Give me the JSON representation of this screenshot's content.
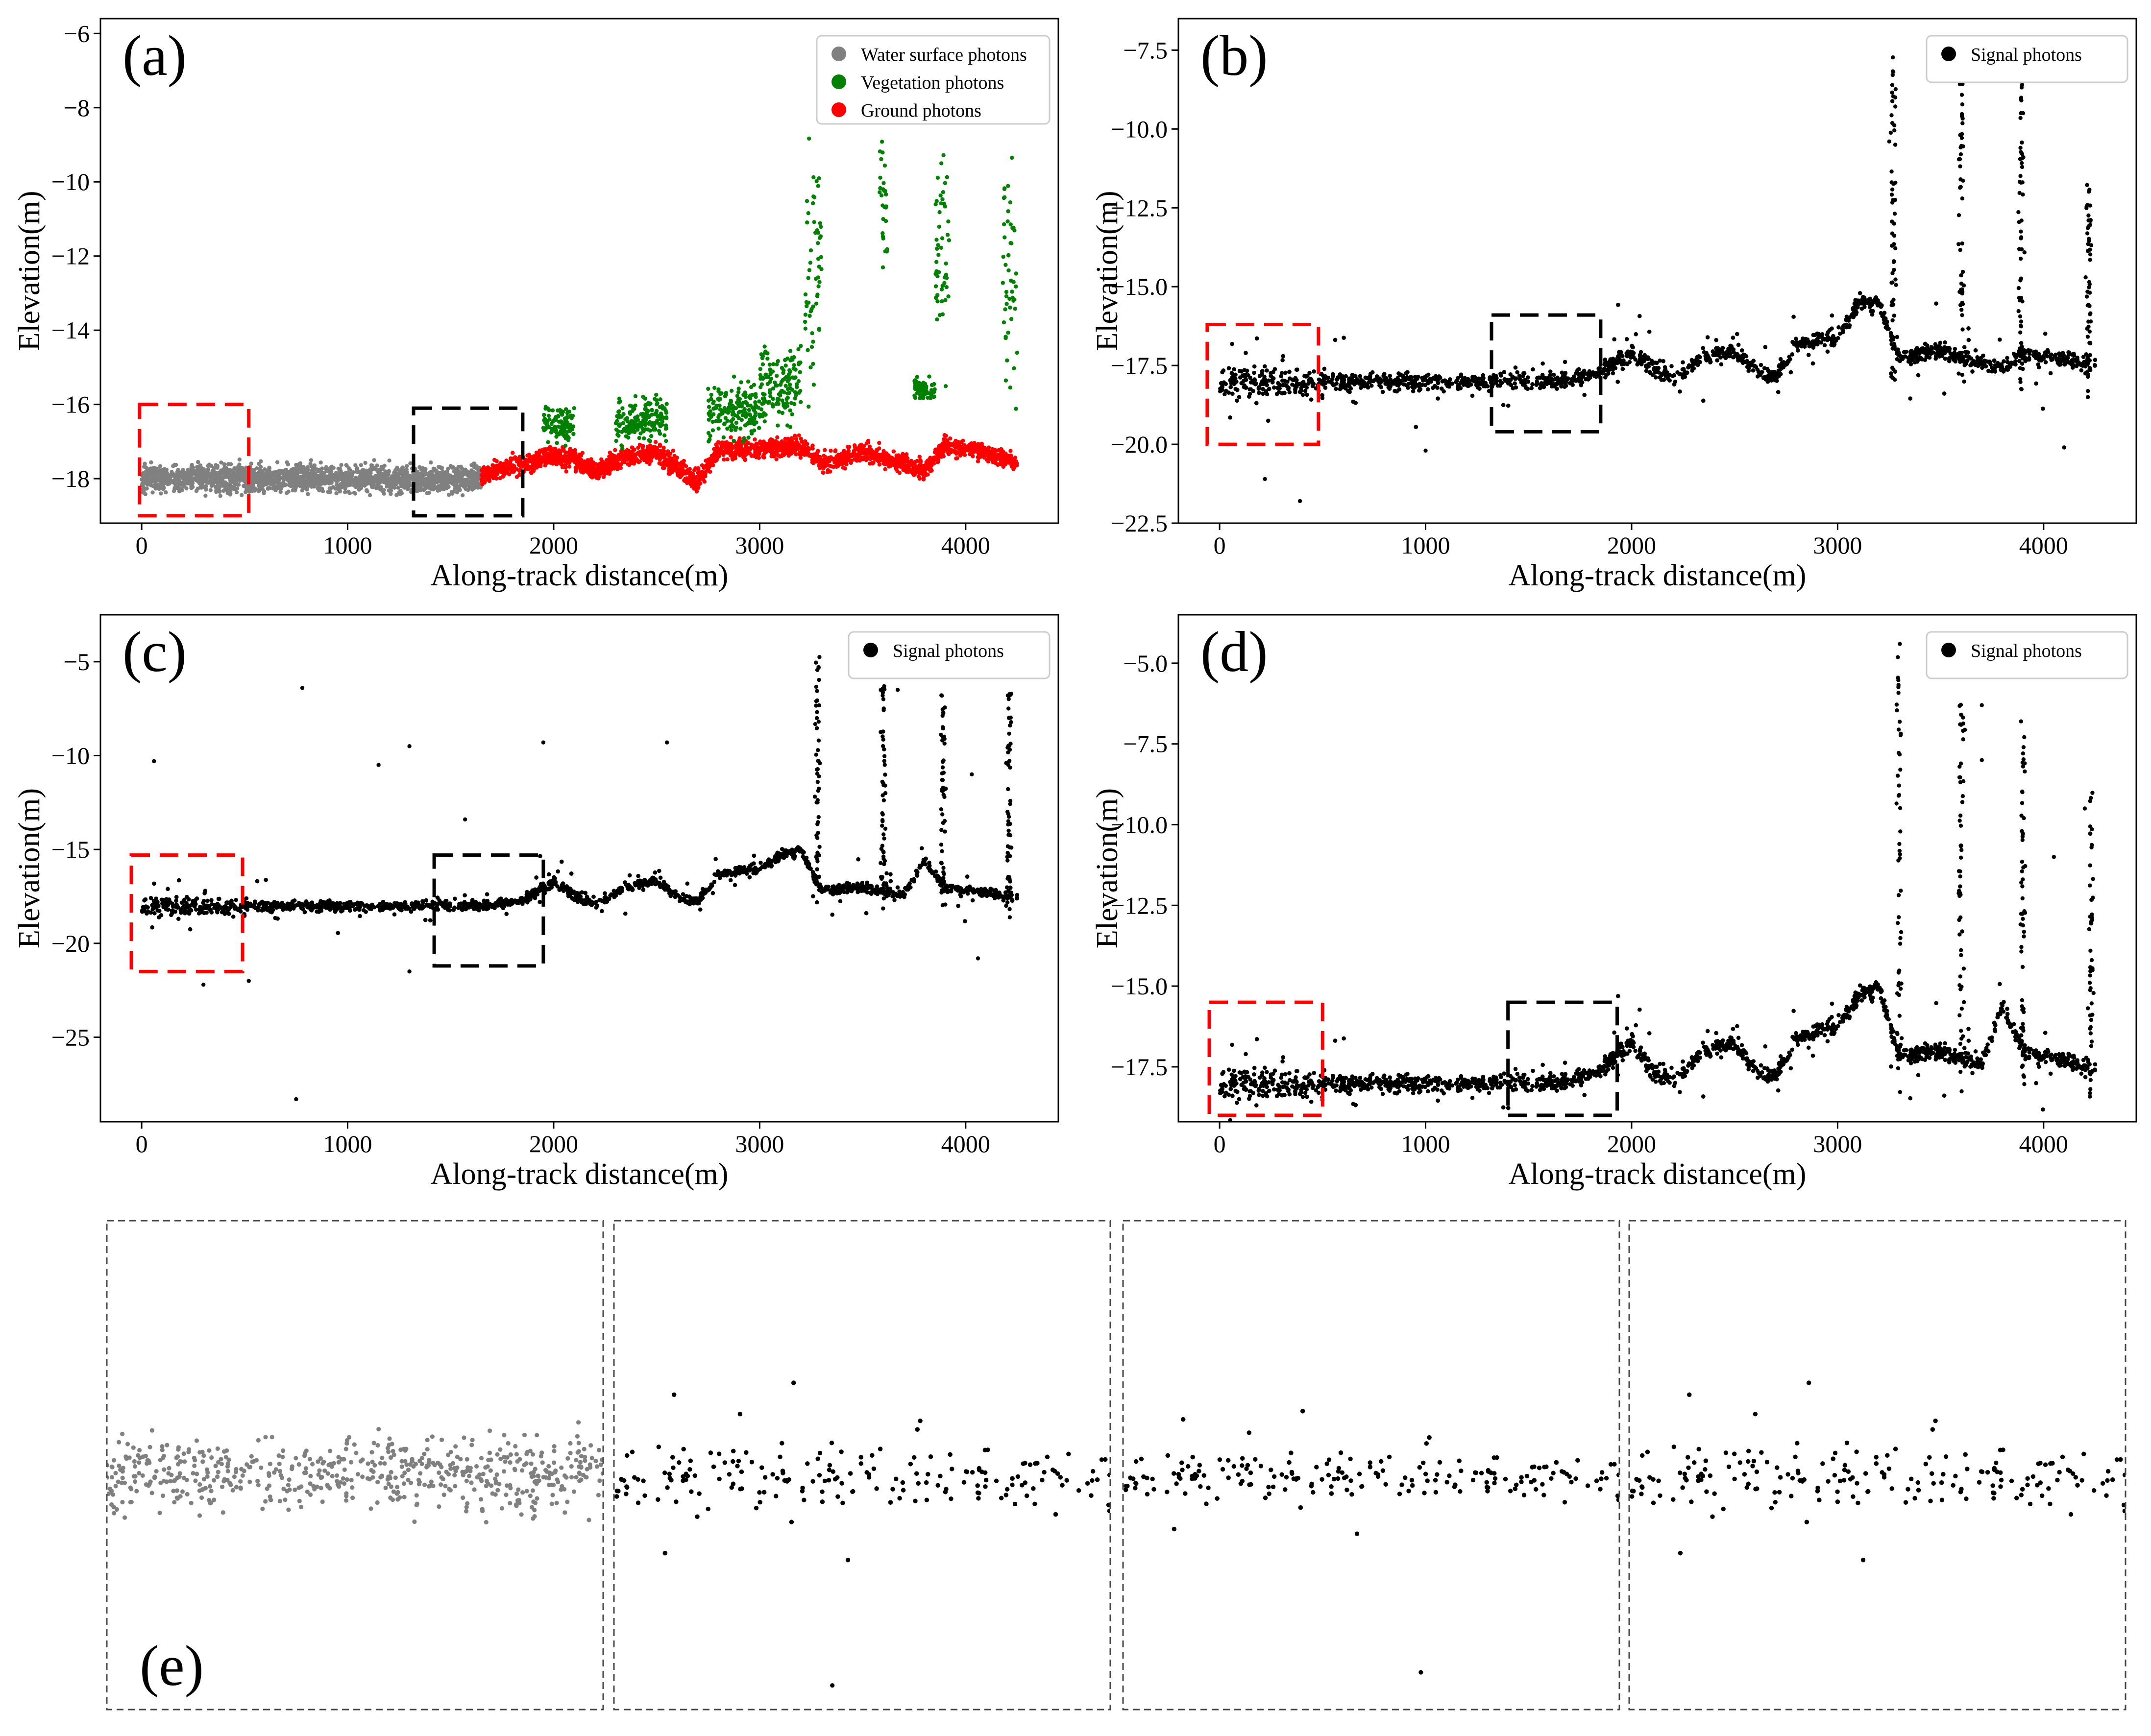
{
  "colors": {
    "water": "#808080",
    "vegetation": "#008000",
    "ground": "#ff0000",
    "signal": "#000000",
    "red_box": "#ff0000",
    "black_box": "#000000"
  },
  "x_axis_label": "Along-track distance(m)",
  "y_axis_label": "Elevation(m)",
  "chart_data": [
    {
      "id": "a",
      "panel_label": "(a)",
      "type": "scatter",
      "xlabel": "Along-track distance(m)",
      "ylabel": "Elevation(m)",
      "xlim": [
        -200,
        4450
      ],
      "ylim": [
        -19.2,
        -5.6
      ],
      "xticks": [
        0,
        1000,
        2000,
        3000,
        4000
      ],
      "yticks": [
        -18,
        -16,
        -14,
        -12,
        -10,
        -8,
        -6
      ],
      "grid": false,
      "legend_position": "top-right",
      "legend": [
        "Water surface photons",
        "Vegetation photons",
        "Ground photons"
      ],
      "series": [
        {
          "name": "Water surface photons",
          "color": "#808080",
          "segments": [
            {
              "x": [
                0,
                1650
              ],
              "elevation": -18.0,
              "spread": 0.35
            }
          ]
        },
        {
          "name": "Ground photons",
          "color": "#ff0000",
          "profile": [
            [
              1650,
              -17.9
            ],
            [
              1850,
              -17.6
            ],
            [
              2000,
              -17.4
            ],
            [
              2100,
              -17.5
            ],
            [
              2200,
              -17.8
            ],
            [
              2350,
              -17.4
            ],
            [
              2500,
              -17.3
            ],
            [
              2600,
              -17.7
            ],
            [
              2700,
              -18.1
            ],
            [
              2800,
              -17.2
            ],
            [
              3000,
              -17.2
            ],
            [
              3200,
              -17.1
            ],
            [
              3300,
              -17.6
            ],
            [
              3500,
              -17.3
            ],
            [
              3700,
              -17.6
            ],
            [
              3800,
              -17.8
            ],
            [
              3900,
              -17.1
            ],
            [
              4100,
              -17.3
            ],
            [
              4250,
              -17.6
            ]
          ]
        },
        {
          "name": "Vegetation photons",
          "color": "#008000",
          "segments": [
            {
              "x": [
                1950,
                2100
              ],
              "elevation": -16.5,
              "spread": 0.5
            },
            {
              "x": [
                2300,
                2550
              ],
              "elevation": -16.4,
              "spread": 0.6
            },
            {
              "x": [
                2750,
                3000
              ],
              "elevation": -16.2,
              "spread": 0.7
            },
            {
              "x": [
                3000,
                3200
              ],
              "elevation": -15.5,
              "spread": 1.0
            },
            {
              "x": [
                3220,
                3300
              ],
              "elevation": -12.0,
              "spread": 3.2
            },
            {
              "x": [
                3580,
                3620
              ],
              "elevation": -10.5,
              "spread": 2.5
            },
            {
              "x": [
                3750,
                3850
              ],
              "elevation": -15.6,
              "spread": 0.3
            },
            {
              "x": [
                3850,
                3920
              ],
              "elevation": -12.0,
              "spread": 3.0
            },
            {
              "x": [
                4180,
                4250
              ],
              "elevation": -12.5,
              "spread": 3.0
            }
          ]
        }
      ]
    },
    {
      "id": "b",
      "panel_label": "(b)",
      "type": "scatter",
      "xlabel": "Along-track distance(m)",
      "ylabel": "Elevation(m)",
      "xlim": [
        -200,
        4450
      ],
      "ylim": [
        -22.5,
        -6.5
      ],
      "xticks": [
        0,
        1000,
        2000,
        3000,
        4000
      ],
      "yticks": [
        -22.5,
        -20.0,
        -17.5,
        -15.0,
        -12.5,
        -10.0,
        -7.5
      ],
      "grid": false,
      "legend_position": "top-right",
      "legend": [
        "Signal photons"
      ],
      "series": [
        {
          "name": "Signal photons",
          "color": "#000000",
          "profile": [
            [
              0,
              -18.0
            ],
            [
              1650,
              -18.0
            ],
            [
              1850,
              -17.7
            ],
            [
              2000,
              -17.1
            ],
            [
              2100,
              -17.5
            ],
            [
              2200,
              -18.0
            ],
            [
              2350,
              -17.2
            ],
            [
              2500,
              -17.0
            ],
            [
              2600,
              -17.6
            ],
            [
              2700,
              -17.9
            ],
            [
              2800,
              -16.8
            ],
            [
              3000,
              -16.6
            ],
            [
              3100,
              -15.5
            ],
            [
              3200,
              -15.5
            ],
            [
              3300,
              -17.3
            ],
            [
              3500,
              -17.0
            ],
            [
              3700,
              -17.4
            ],
            [
              3800,
              -17.6
            ],
            [
              3900,
              -17.1
            ],
            [
              4100,
              -17.3
            ],
            [
              4250,
              -17.5
            ]
          ],
          "spikes": [
            [
              3270,
              -7.4
            ],
            [
              3600,
              -8.1
            ],
            [
              3890,
              -7.8
            ],
            [
              4220,
              -11.6
            ]
          ],
          "outliers": [
            [
              220,
              -21.1
            ],
            [
              390,
              -21.8
            ],
            [
              1000,
              -20.2
            ],
            [
              3280,
              -9.0
            ],
            [
              3280,
              -10.5
            ],
            [
              3890,
              -9.5
            ],
            [
              3890,
              -11.7
            ],
            [
              4100,
              -20.1
            ]
          ]
        }
      ]
    },
    {
      "id": "c",
      "panel_label": "(c)",
      "type": "scatter",
      "xlabel": "Along-track distance(m)",
      "ylabel": "Elevation(m)",
      "xlim": [
        -200,
        4450
      ],
      "ylim": [
        -29.5,
        -2.5
      ],
      "xticks": [
        0,
        1000,
        2000,
        3000,
        4000
      ],
      "yticks": [
        -25,
        -20,
        -15,
        -10,
        -5
      ],
      "grid": false,
      "legend_position": "top-right",
      "legend": [
        "Signal photons"
      ],
      "series": [
        {
          "name": "Signal photons",
          "color": "#000000",
          "profile": [
            [
              0,
              -18.0
            ],
            [
              1650,
              -18.0
            ],
            [
              1850,
              -17.7
            ],
            [
              2000,
              -16.7
            ],
            [
              2100,
              -17.4
            ],
            [
              2200,
              -18.0
            ],
            [
              2350,
              -17.0
            ],
            [
              2500,
              -16.6
            ],
            [
              2600,
              -17.5
            ],
            [
              2700,
              -17.8
            ],
            [
              2800,
              -16.3
            ],
            [
              3000,
              -16.0
            ],
            [
              3100,
              -15.3
            ],
            [
              3200,
              -15.0
            ],
            [
              3300,
              -17.2
            ],
            [
              3500,
              -17.0
            ],
            [
              3700,
              -17.4
            ],
            [
              3800,
              -15.6
            ],
            [
              3900,
              -17.0
            ],
            [
              4100,
              -17.3
            ],
            [
              4250,
              -17.6
            ]
          ],
          "spikes": [
            [
              3280,
              -4.5
            ],
            [
              3600,
              -6.3
            ],
            [
              3890,
              -6.7
            ],
            [
              4210,
              -6.5
            ]
          ],
          "outliers": [
            [
              60,
              -10.3
            ],
            [
              780,
              -6.4
            ],
            [
              1150,
              -10.5
            ],
            [
              1300,
              -9.5
            ],
            [
              1570,
              -13.4
            ],
            [
              1950,
              -9.3
            ],
            [
              2550,
              -9.3
            ],
            [
              750,
              -28.3
            ],
            [
              300,
              -22.2
            ],
            [
              520,
              -22.0
            ],
            [
              1300,
              -21.5
            ],
            [
              3670,
              -6.5
            ],
            [
              4030,
              -11.0
            ],
            [
              4060,
              -20.8
            ]
          ]
        }
      ]
    },
    {
      "id": "d",
      "panel_label": "(d)",
      "type": "scatter",
      "xlabel": "Along-track distance(m)",
      "ylabel": "Elevation(m)",
      "xlim": [
        -200,
        4450
      ],
      "ylim": [
        -19.2,
        -3.5
      ],
      "xticks": [
        0,
        1000,
        2000,
        3000,
        4000
      ],
      "yticks": [
        -17.5,
        -15.0,
        -12.5,
        -10.0,
        -7.5,
        -5.0
      ],
      "grid": false,
      "legend_position": "top-right",
      "legend": [
        "Signal photons"
      ],
      "series": [
        {
          "name": "Signal photons",
          "color": "#000000",
          "profile": [
            [
              0,
              -18.0
            ],
            [
              1650,
              -18.0
            ],
            [
              1850,
              -17.6
            ],
            [
              2000,
              -16.7
            ],
            [
              2100,
              -17.6
            ],
            [
              2200,
              -18.0
            ],
            [
              2350,
              -17.0
            ],
            [
              2500,
              -16.7
            ],
            [
              2600,
              -17.6
            ],
            [
              2700,
              -17.8
            ],
            [
              2800,
              -16.6
            ],
            [
              3000,
              -16.2
            ],
            [
              3100,
              -15.3
            ],
            [
              3200,
              -15.0
            ],
            [
              3300,
              -17.2
            ],
            [
              3500,
              -17.0
            ],
            [
              3700,
              -17.4
            ],
            [
              3800,
              -15.6
            ],
            [
              3900,
              -17.0
            ],
            [
              4100,
              -17.3
            ],
            [
              4250,
              -17.6
            ]
          ],
          "spikes": [
            [
              3300,
              -4.4
            ],
            [
              3600,
              -6.2
            ],
            [
              3900,
              -6.6
            ],
            [
              4230,
              -8.6
            ]
          ],
          "outliers": [
            [
              3700,
              -6.3
            ],
            [
              3700,
              -8.0
            ],
            [
              4050,
              -11.0
            ],
            [
              4200,
              -9.5
            ]
          ]
        }
      ]
    },
    {
      "id": "e",
      "panel_label": "(e)",
      "type": "scatter",
      "grid": false,
      "insets": [
        {
          "source": "a",
          "x_range": [
            0,
            500
          ]
        },
        {
          "source": "b",
          "x_range": [
            0,
            500
          ]
        },
        {
          "source": "c",
          "x_range": [
            0,
            500
          ]
        },
        {
          "source": "d",
          "x_range": [
            0,
            500
          ]
        }
      ]
    }
  ]
}
